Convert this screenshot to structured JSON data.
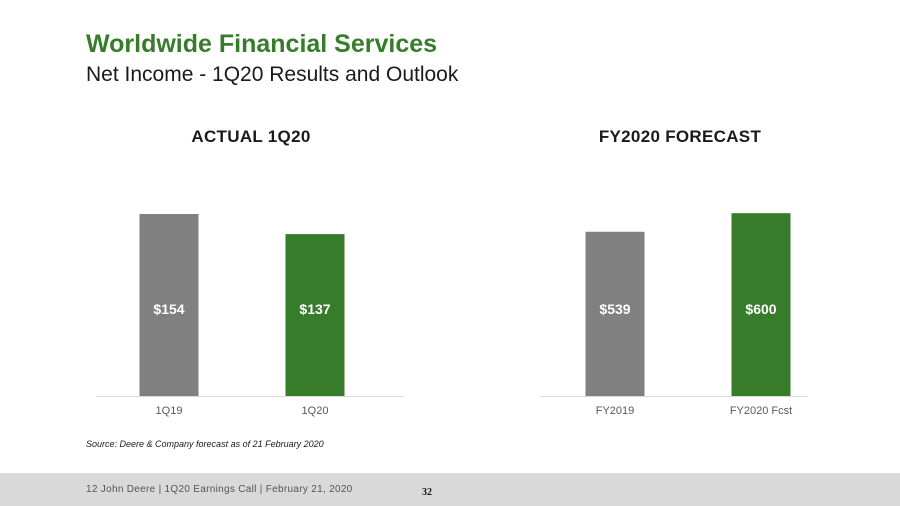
{
  "header": {
    "title": "Worldwide Financial Services",
    "subtitle": "Net Income - 1Q20 Results and Outlook"
  },
  "colors": {
    "accent_green": "#367C2B",
    "gray": "#808080"
  },
  "chart_data": [
    {
      "type": "bar",
      "title": "ACTUAL 1Q20",
      "categories": [
        "1Q19",
        "1Q20"
      ],
      "values": [
        154,
        137
      ],
      "value_labels": [
        "$154",
        "$137"
      ],
      "bar_colors": [
        "#808080",
        "#367C2B"
      ],
      "ylim": [
        0,
        165
      ],
      "grid": false
    },
    {
      "type": "bar",
      "title": "FY2020 FORECAST",
      "categories": [
        "FY2019",
        "FY2020 Fcst"
      ],
      "values": [
        539,
        600
      ],
      "value_labels": [
        "$539",
        "$600"
      ],
      "bar_colors": [
        "#808080",
        "#367C2B"
      ],
      "ylim": [
        0,
        640
      ],
      "grid": false
    }
  ],
  "source": "Source: Deere & Company forecast as of 21 February 2020",
  "footer": {
    "text": "12    John Deere | 1Q20 Earnings Call | February 21, 2020",
    "page_number": "32"
  }
}
